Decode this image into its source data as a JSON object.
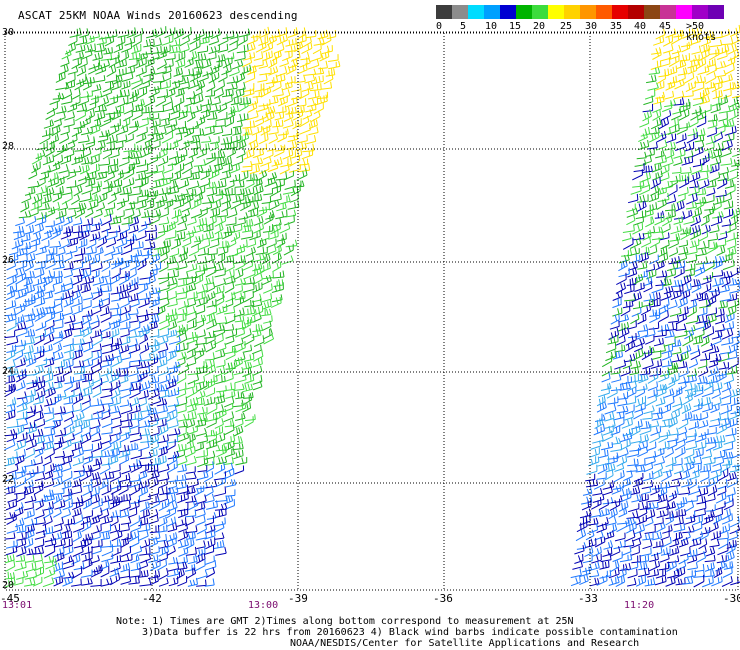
{
  "title": "ASCAT 25KM NOAA Winds 20160623 descending",
  "color_scale": {
    "labels": [
      "0",
      "5",
      "10",
      "15",
      "20",
      "25",
      "30",
      "35",
      "40",
      "45",
      ">50 knots"
    ],
    "colors": [
      "#3c3c3c",
      "#8c8c8c",
      "#00dcff",
      "#00a0ff",
      "#0000d2",
      "#00b400",
      "#3cdc3c",
      "#ffff00",
      "#ffd200",
      "#ff9600",
      "#ff5a00",
      "#e60000",
      "#b40000",
      "#8c4614",
      "#c83296",
      "#ff00ff",
      "#a000c8",
      "#6e00b4"
    ]
  },
  "map": {
    "lat_labels": [
      "30",
      "28",
      "26",
      "24",
      "22",
      "20"
    ],
    "lon_labels": [
      "-45",
      "-42",
      "-39",
      "-36",
      "-33",
      "-30"
    ],
    "time_labels": [
      "13:01",
      "13:00",
      "11:20"
    ],
    "lat_range": [
      20,
      30
    ],
    "lon_range": [
      -45,
      -30
    ],
    "grid": true,
    "swaths": [
      {
        "name": "west",
        "time": "13:00"
      },
      {
        "name": "east",
        "time": "11:20"
      }
    ]
  },
  "notes": {
    "line1": "Note: 1) Times are GMT 2)Times along bottom correspond to measurement at 25N",
    "line2": "3)Data buffer is 22 hrs from 20160623 4) Black wind barbs indicate possible contamination",
    "line3": "NOAA/NESDIS/Center for Satellite Applications and Research"
  }
}
